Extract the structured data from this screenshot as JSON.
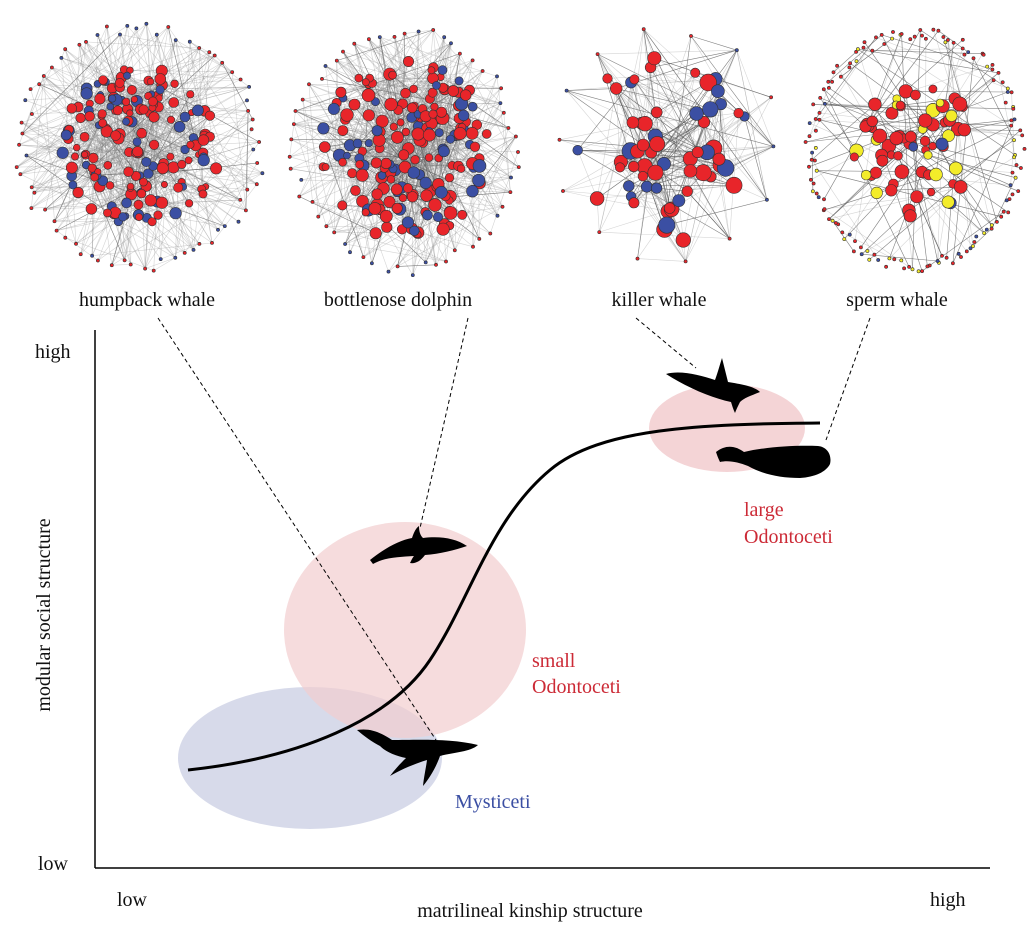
{
  "networks": [
    {
      "label": "humpback whale"
    },
    {
      "label": "bottlenose dolphin"
    },
    {
      "label": "killer whale"
    },
    {
      "label": "sperm whale"
    }
  ],
  "axes": {
    "ylabel": "modular social structure",
    "xlabel": "matrilineal kinship structure",
    "y_high": "high",
    "y_low": "low",
    "x_low": "low",
    "x_high": "high"
  },
  "groups": {
    "small_line1": "small",
    "small_line2": "Odontoceti",
    "large_line1": "large",
    "large_line2": "Odontoceti",
    "mysticeti": "Mysticeti"
  },
  "colors": {
    "red_node": "#e8252a",
    "blue_node": "#3b4fa3",
    "yellow_node": "#f3ec2a",
    "mysticeti_ellipse": "#c9cde3",
    "odontoceti_ellipse": "#f2cdcf",
    "mysticeti_text": "#3b4fa3",
    "odontoceti_text": "#cc2a36"
  }
}
